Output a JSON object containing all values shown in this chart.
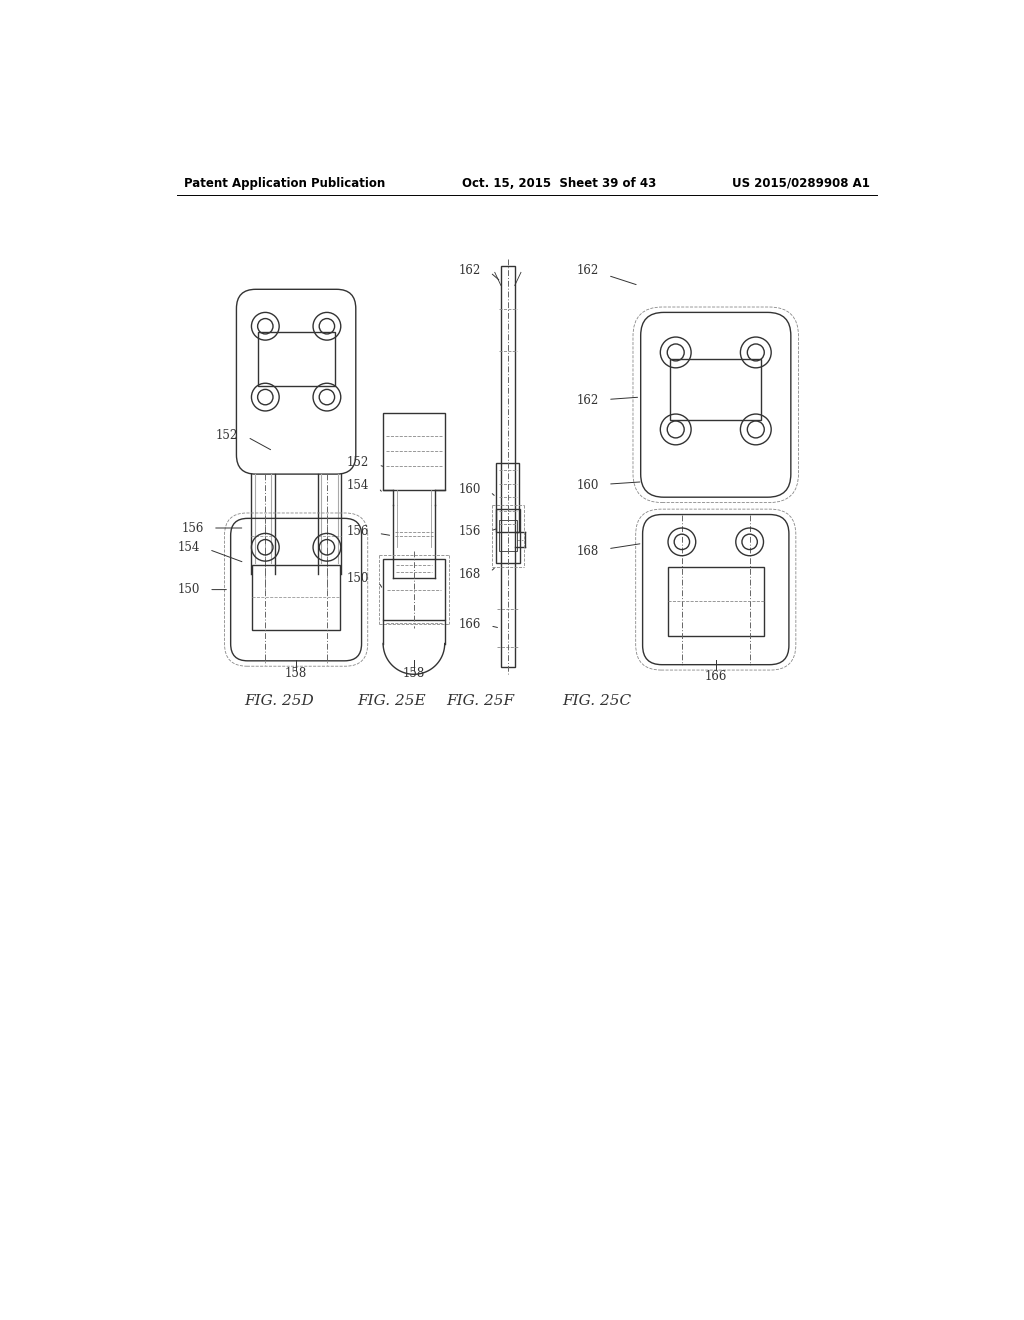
{
  "header_left": "Patent Application Publication",
  "header_mid": "Oct. 15, 2015  Sheet 39 of 43",
  "header_right": "US 2015/0289908 A1",
  "background_color": "#ffffff",
  "line_color": "#333333",
  "lw": 1.0,
  "lw_thin": 0.6,
  "gray_dash": "#888888"
}
